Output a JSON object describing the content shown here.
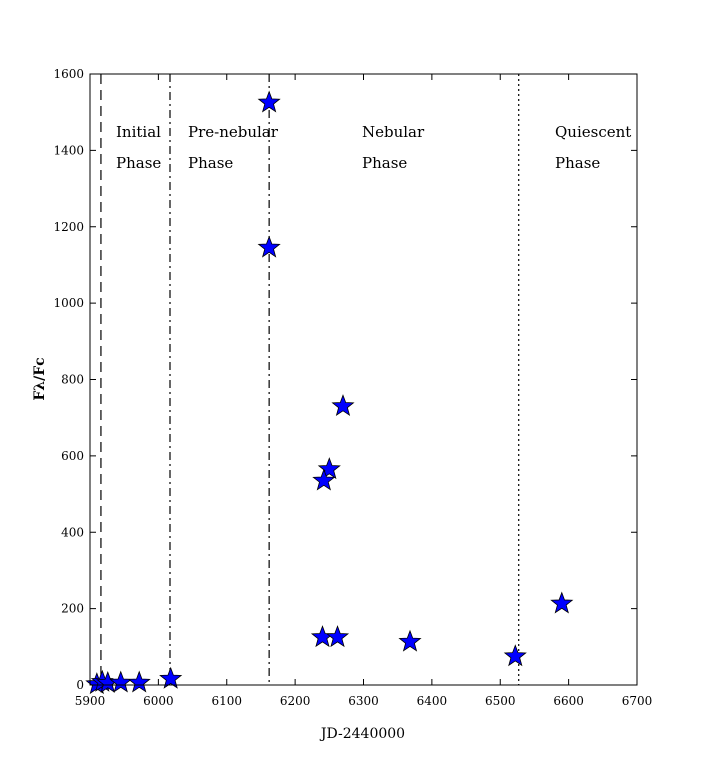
{
  "chart_data": {
    "type": "scatter",
    "xlabel": "JD-2440000",
    "ylabel": "Fλ/Fc",
    "xlim": [
      5900,
      6700
    ],
    "ylim": [
      0,
      1600
    ],
    "x_ticks": [
      5900,
      6000,
      6100,
      6200,
      6300,
      6400,
      6500,
      6600,
      6700
    ],
    "y_ticks": [
      0,
      200,
      400,
      600,
      800,
      1000,
      1200,
      1400,
      1600
    ],
    "grid": false,
    "marker": "star",
    "marker_color": "#0000ff",
    "series": [
      {
        "points": [
          {
            "x": 5910,
            "y": 2
          },
          {
            "x": 5918,
            "y": 8
          },
          {
            "x": 5926,
            "y": 5
          },
          {
            "x": 5945,
            "y": 6
          },
          {
            "x": 5972,
            "y": 6
          },
          {
            "x": 6018,
            "y": 16
          },
          {
            "x": 6162,
            "y": 1525
          },
          {
            "x": 6162,
            "y": 1145
          },
          {
            "x": 6270,
            "y": 730
          },
          {
            "x": 6250,
            "y": 565
          },
          {
            "x": 6242,
            "y": 535
          },
          {
            "x": 6240,
            "y": 125
          },
          {
            "x": 6262,
            "y": 125
          },
          {
            "x": 6368,
            "y": 113
          },
          {
            "x": 6522,
            "y": 75
          },
          {
            "x": 6590,
            "y": 213
          }
        ]
      }
    ],
    "phase_boundaries": [
      {
        "x": 5916,
        "style": "dashed"
      },
      {
        "x": 6017,
        "style": "dashdot"
      },
      {
        "x": 6162,
        "style": "dashdot"
      },
      {
        "x": 6527,
        "style": "dotted"
      }
    ],
    "phase_labels": [
      {
        "line1": "Initial",
        "line2": "Phase"
      },
      {
        "line1": "Pre-nebular",
        "line2": "Phase"
      },
      {
        "line1": "Nebular",
        "line2": "Phase"
      },
      {
        "line1": "Quiescent",
        "line2": "Phase"
      }
    ]
  }
}
